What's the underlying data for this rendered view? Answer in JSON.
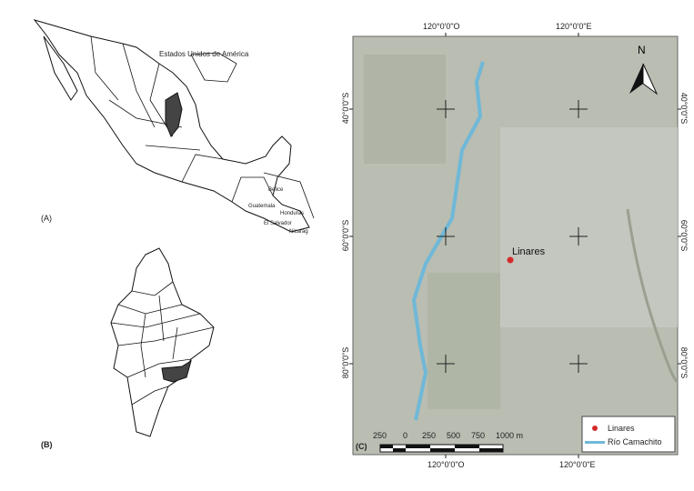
{
  "panel_a": {
    "label": "(A)",
    "country_labels": [
      "Estados Unidos de América",
      "Belice",
      "Guatemala",
      "Honduras",
      "El Salvador",
      "Nicarag"
    ]
  },
  "panel_b": {
    "label": "(B)"
  },
  "panel_c": {
    "label": "(C)",
    "top_ticks": [
      "120°0'0\"O",
      "120°0'0\"E"
    ],
    "bottom_ticks": [
      "120°0'0\"O",
      "120°0'0\"E"
    ],
    "left_ticks": [
      "40°0'0\"S",
      "60°0'0\"S",
      "80°0'0\"S"
    ],
    "right_ticks": [
      "40°0'0\"S",
      "60°0'0\"S",
      "80°0'0\"S"
    ],
    "north_label": "N",
    "place_label": "Linares",
    "scale_labels": [
      "250",
      "0",
      "250",
      "500",
      "750",
      "1000 m"
    ],
    "legend": [
      {
        "label": "Linares",
        "color": "#d42a2a",
        "symbol": "dot"
      },
      {
        "label": "Río Camachito",
        "color": "#6fb8d8",
        "symbol": "line"
      }
    ]
  },
  "colors": {
    "highlight": "#444444",
    "river": "#6fb8d8",
    "point": "#d42a2a",
    "imagery": "#b9bdb2"
  }
}
